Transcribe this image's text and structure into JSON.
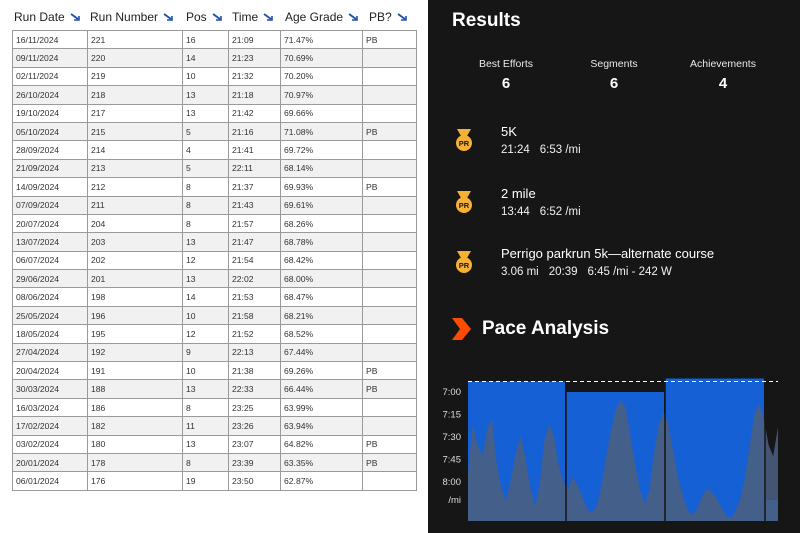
{
  "table": {
    "headers": [
      "Run Date",
      "Run Number",
      "Pos",
      "Time",
      "Age Grade",
      "PB?"
    ],
    "rows": [
      [
        "16/11/2024",
        "221",
        "16",
        "21:09",
        "71.47%",
        "PB"
      ],
      [
        "09/11/2024",
        "220",
        "14",
        "21:23",
        "70.69%",
        ""
      ],
      [
        "02/11/2024",
        "219",
        "10",
        "21:32",
        "70.20%",
        ""
      ],
      [
        "26/10/2024",
        "218",
        "13",
        "21:18",
        "70.97%",
        ""
      ],
      [
        "19/10/2024",
        "217",
        "13",
        "21:42",
        "69.66%",
        ""
      ],
      [
        "05/10/2024",
        "215",
        "5",
        "21:16",
        "71.08%",
        "PB"
      ],
      [
        "28/09/2024",
        "214",
        "4",
        "21:41",
        "69.72%",
        ""
      ],
      [
        "21/09/2024",
        "213",
        "5",
        "22:11",
        "68.14%",
        ""
      ],
      [
        "14/09/2024",
        "212",
        "8",
        "21:37",
        "69.93%",
        "PB"
      ],
      [
        "07/09/2024",
        "211",
        "8",
        "21:43",
        "69.61%",
        ""
      ],
      [
        "20/07/2024",
        "204",
        "8",
        "21:57",
        "68.26%",
        ""
      ],
      [
        "13/07/2024",
        "203",
        "13",
        "21:47",
        "68.78%",
        ""
      ],
      [
        "06/07/2024",
        "202",
        "12",
        "21:54",
        "68.42%",
        ""
      ],
      [
        "29/06/2024",
        "201",
        "13",
        "22:02",
        "68.00%",
        ""
      ],
      [
        "08/06/2024",
        "198",
        "14",
        "21:53",
        "68.47%",
        ""
      ],
      [
        "25/05/2024",
        "196",
        "10",
        "21:58",
        "68.21%",
        ""
      ],
      [
        "18/05/2024",
        "195",
        "12",
        "21:52",
        "68.52%",
        ""
      ],
      [
        "27/04/2024",
        "192",
        "9",
        "22:13",
        "67.44%",
        ""
      ],
      [
        "20/04/2024",
        "191",
        "10",
        "21:38",
        "69.26%",
        "PB"
      ],
      [
        "30/03/2024",
        "188",
        "13",
        "22:33",
        "66.44%",
        "PB"
      ],
      [
        "16/03/2024",
        "186",
        "8",
        "23:25",
        "63.99%",
        ""
      ],
      [
        "17/02/2024",
        "182",
        "11",
        "23:26",
        "63.94%",
        ""
      ],
      [
        "03/02/2024",
        "180",
        "13",
        "23:07",
        "64.82%",
        "PB"
      ],
      [
        "20/01/2024",
        "178",
        "8",
        "23:39",
        "63.35%",
        "PB"
      ],
      [
        "06/01/2024",
        "176",
        "19",
        "23:50",
        "62.87%",
        ""
      ]
    ]
  },
  "results": {
    "title": "Results",
    "stats": [
      {
        "label": "Best Efforts",
        "value": "6"
      },
      {
        "label": "Segments",
        "value": "6"
      },
      {
        "label": "Achievements",
        "value": "4"
      }
    ],
    "efforts": [
      {
        "name": "5K",
        "details": [
          "21:24",
          "6:53 /mi"
        ],
        "icon": "pr-medal-icon"
      },
      {
        "name": "2 mile",
        "details": [
          "13:44",
          "6:52 /mi"
        ],
        "icon": "pr-medal-icon"
      },
      {
        "name": "Perrigo parkrun 5k—alternate course",
        "details": [
          "3.06 mi",
          "20:39",
          "6:45 /mi - 242 W"
        ],
        "icon": "pr-medal-icon"
      }
    ],
    "pr_badge_text": "PR"
  },
  "pace_analysis": {
    "title": "Pace Analysis",
    "icon": "orange-chevron-icon",
    "colors": {
      "splits": "#1560d4",
      "elevation": "#4a5f80",
      "chevron": "#fc4c02",
      "medal": "#f5b133"
    }
  },
  "chart_data": {
    "type": "bar",
    "yticks": [
      "7:00",
      "7:15",
      "7:30",
      "7:45",
      "8:00"
    ],
    "yunit": "/mi",
    "ylim_seconds_per_mile": [
      408,
      506
    ],
    "split_paces_seconds_per_mile": [
      413,
      420,
      411
    ],
    "final_split_pace_seconds_per_mile": 492,
    "average_pace_seconds_per_mile": 413,
    "elevation_profile": [
      32,
      66,
      52,
      44,
      62,
      70,
      40,
      22,
      14,
      28,
      46,
      58,
      44,
      24,
      10,
      24,
      54,
      66,
      58,
      38,
      26,
      22,
      30,
      24,
      16,
      8,
      6,
      10,
      24,
      44,
      62,
      76,
      82,
      78,
      58,
      40,
      22,
      12,
      20,
      46,
      66,
      74,
      66,
      48,
      30,
      18,
      8,
      4,
      8,
      16,
      22,
      20,
      16,
      10,
      4,
      2,
      6,
      14,
      28,
      50,
      72,
      80,
      70,
      52,
      44,
      64
    ]
  }
}
